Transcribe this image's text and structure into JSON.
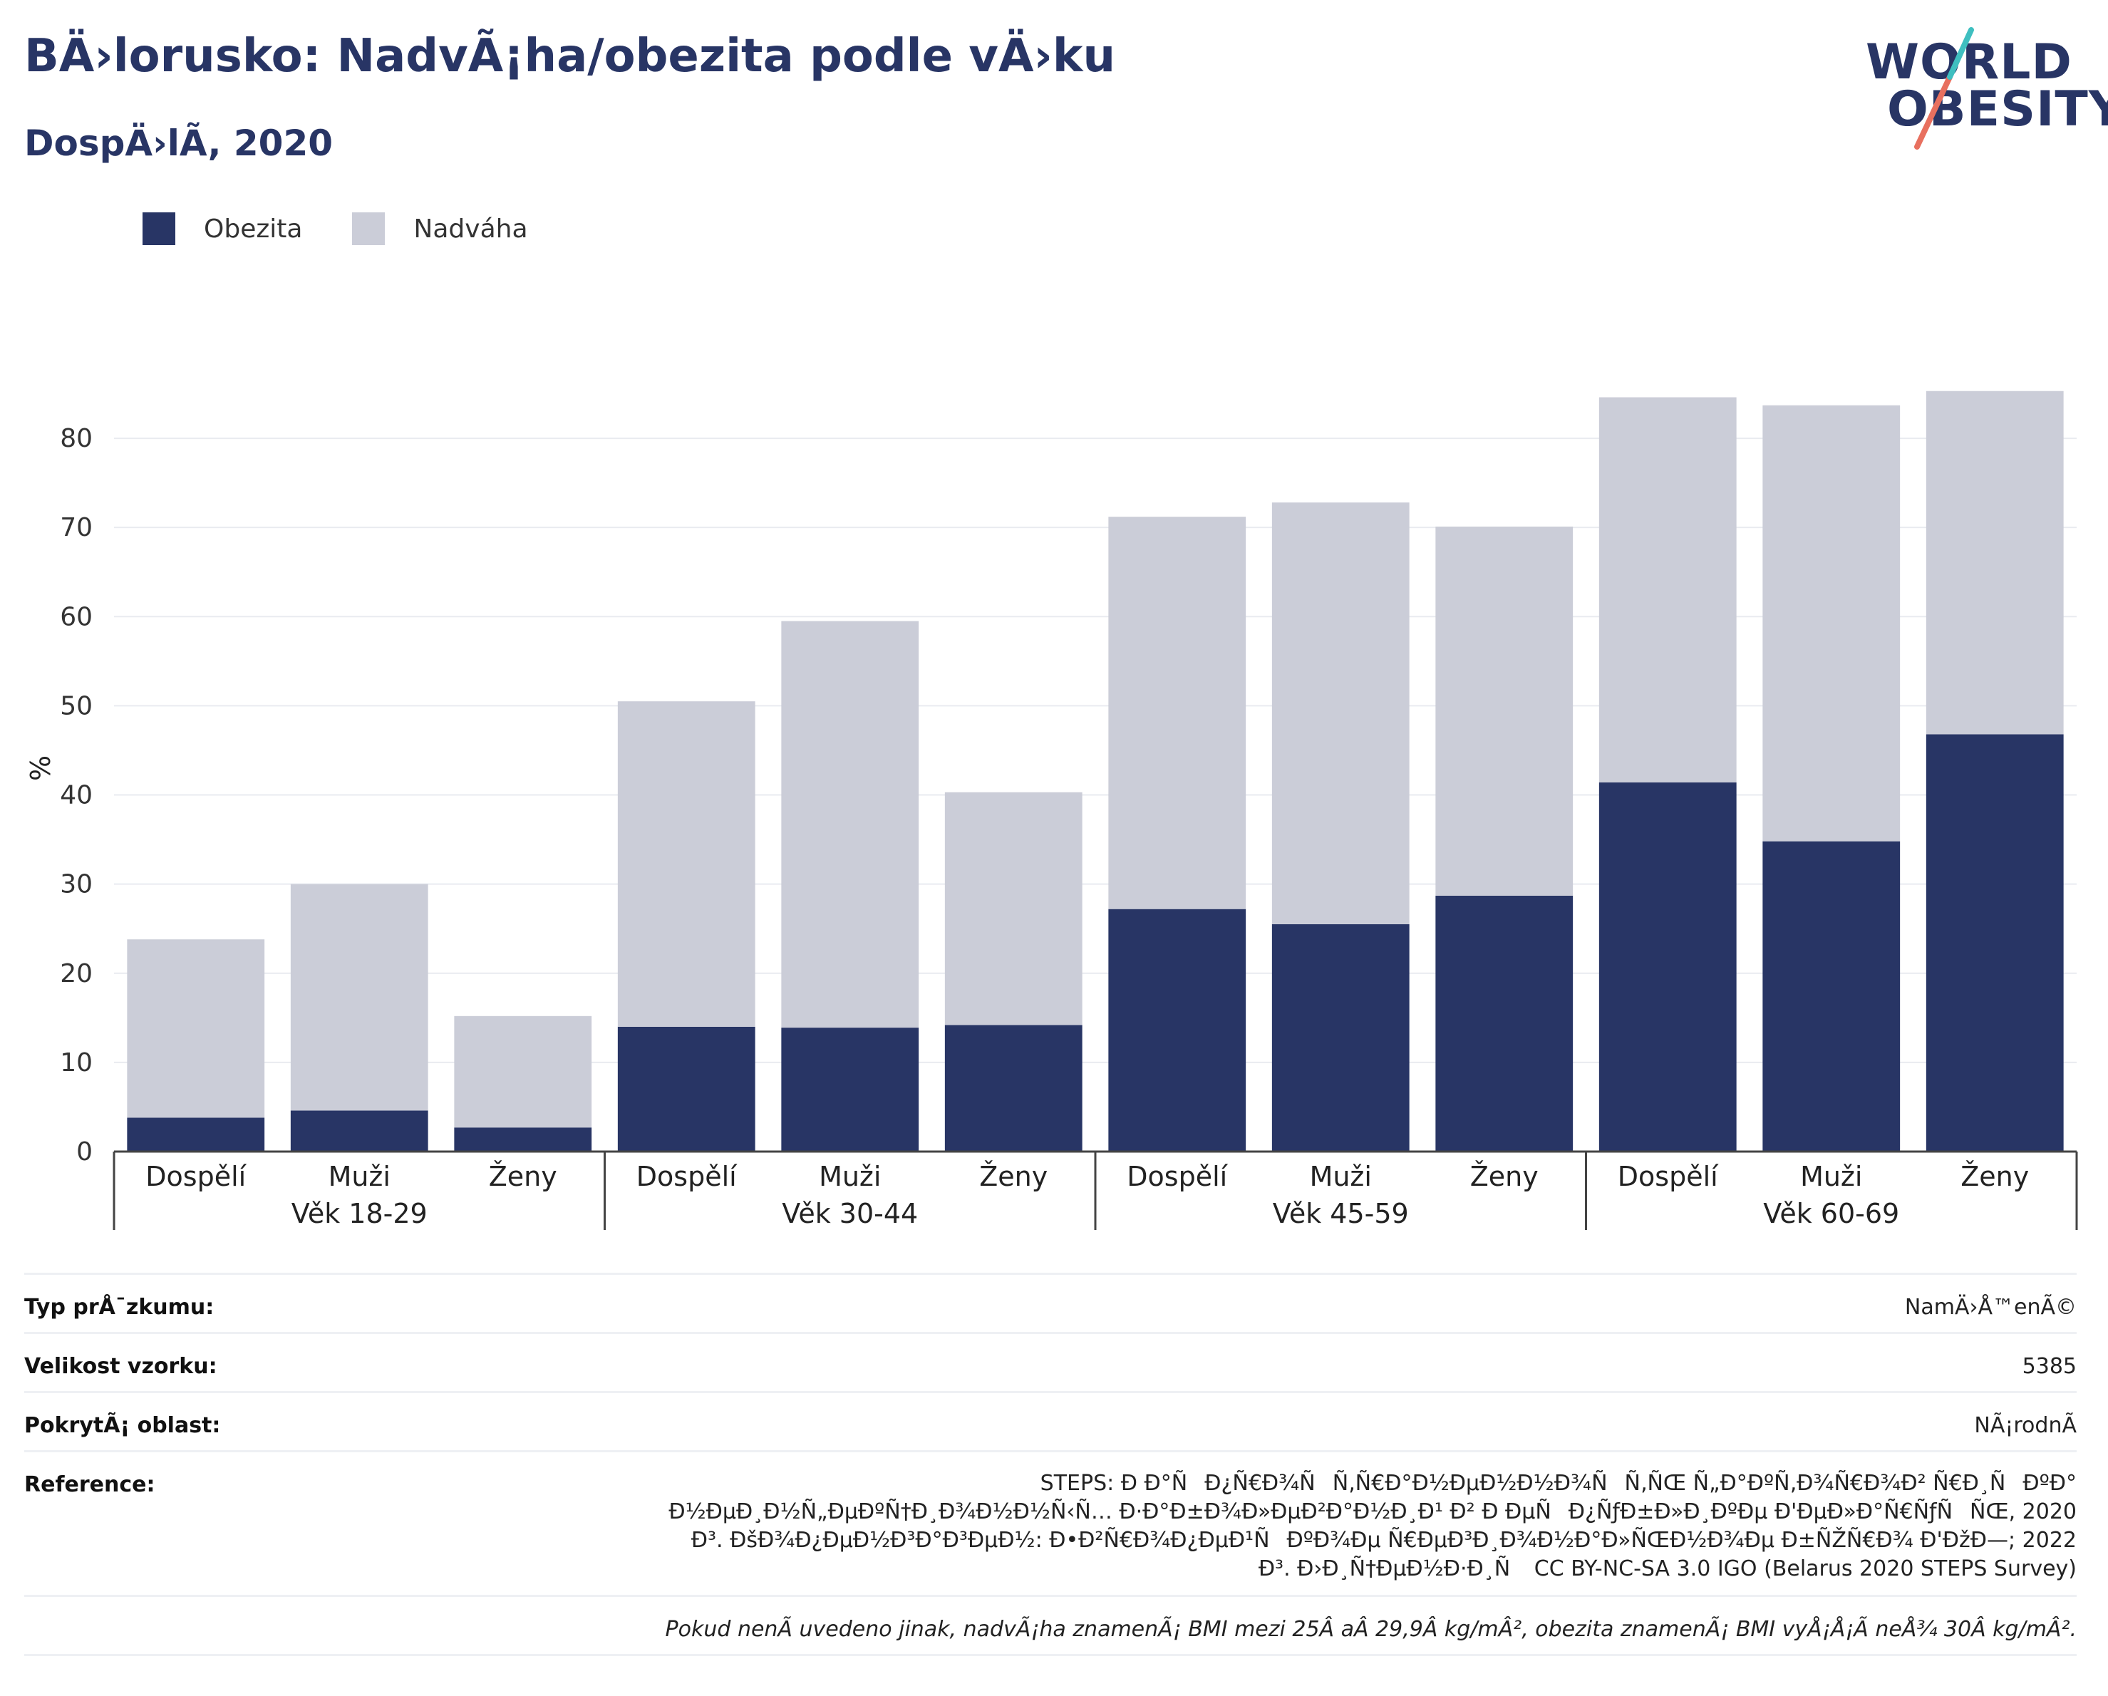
{
  "title": "BÄ›lorusko: NadvÃ¡ha/obezita podle vÄ›ku",
  "subtitle": "DospÄ›lÃ­, 2020",
  "logo": {
    "line1": "WORLD",
    "line2": "OBESITY"
  },
  "legend": [
    {
      "label": "Obezita",
      "color": "#283565"
    },
    {
      "label": "Nadváha",
      "color": "#cbcdd8"
    }
  ],
  "chart_data": {
    "type": "bar",
    "stacked": true,
    "ylabel": "%",
    "ylim": [
      0,
      86
    ],
    "yticks": [
      0,
      10,
      20,
      30,
      40,
      50,
      60,
      70,
      80
    ],
    "grid": true,
    "legend_position": "top-left",
    "groups": [
      {
        "label": "Věk 18-29",
        "categories": [
          "Dospělí",
          "Muži",
          "Ženy"
        ]
      },
      {
        "label": "Věk 30-44",
        "categories": [
          "Dospělí",
          "Muži",
          "Ženy"
        ]
      },
      {
        "label": "Věk 45-59",
        "categories": [
          "Dospělí",
          "Muži",
          "Ženy"
        ]
      },
      {
        "label": "Věk 60-69",
        "categories": [
          "Dospělí",
          "Muži",
          "Ženy"
        ]
      }
    ],
    "series": [
      {
        "name": "Obezita",
        "color": "#283565",
        "values": [
          3.8,
          4.6,
          2.7,
          14.0,
          13.9,
          14.2,
          27.2,
          25.5,
          28.7,
          41.4,
          34.8,
          46.8
        ]
      },
      {
        "name": "Nadváha",
        "color": "#cbcdd8",
        "values": [
          20.0,
          25.4,
          12.5,
          36.5,
          45.6,
          26.1,
          44.0,
          47.3,
          41.4,
          43.2,
          48.9,
          38.5
        ]
      }
    ]
  },
  "info": {
    "survey_type_label": "Typ prÅ¯zkumu:",
    "survey_type_value": "NamÄ›Å™enÃ©",
    "sample_size_label": "Velikost vzorku:",
    "sample_size_value": "5385",
    "coverage_label": "PokrytÃ¡ oblast:",
    "coverage_value": "NÃ¡rodnÃ­",
    "reference_label": "Reference:",
    "reference_lines": [
      "STEPS: Ð Ð°ÑÐ¿Ñ€Ð¾ÑÑ‚Ñ€Ð°Ð½ÐµÐ½Ð½Ð¾ÑÑ‚ÑŒ Ñ„Ð°ÐºÑ‚Ð¾Ñ€Ð¾Ð² Ñ€Ð¸ÑÐºÐ°",
      "Ð½ÐµÐ¸Ð½Ñ„ÐµÐºÑ†Ð¸Ð¾Ð½Ð½Ñ‹Ñ… Ð·Ð°Ð±Ð¾Ð»ÐµÐ²Ð°Ð½Ð¸Ð¹ Ð² Ð ÐµÑÐ¿ÑƒÐ±Ð»Ð¸ÐºÐµ Ð'ÐµÐ»Ð°Ñ€ÑƒÑÑŒ, 2020",
      "Ð³. ÐšÐ¾Ð¿ÐµÐ½Ð³Ð°Ð³ÐµÐ½: Ð•Ð²Ñ€Ð¾Ð¿ÐµÐ¹ÑÐºÐ¾Ðµ Ñ€ÐµÐ³Ð¸Ð¾Ð½Ð°Ð»ÑŒÐ½Ð¾Ðµ Ð±ÑŽÑ€Ð¾ Ð'ÐžÐ—; 2022",
      "Ð³. Ð›Ð¸Ñ†ÐµÐ½Ð·Ð¸Ñ CC BY-NC-SA 3.0 IGO (Belarus 2020 STEPS Survey)"
    ],
    "note": "Pokud nenÃ­ uvedeno jinak, nadvÃ¡ha znamenÃ¡ BMI mezi 25Â aÂ 29,9Â kg/mÂ², obezita znamenÃ¡ BMI vyÅ¡Å¡Ã­ neÅ¾ 30Â kg/mÂ²."
  }
}
